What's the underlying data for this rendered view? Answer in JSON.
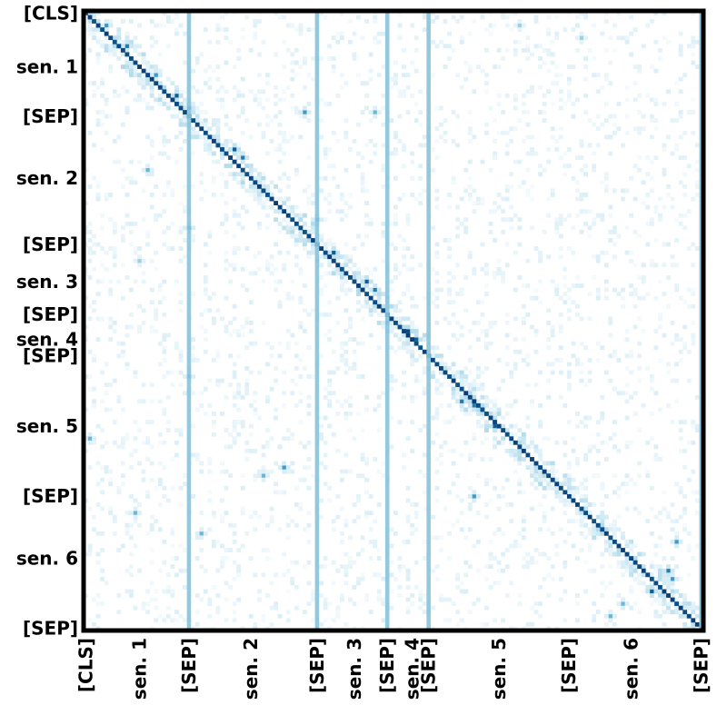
{
  "chart_data": {
    "type": "heatmap",
    "title": "",
    "xlabel": "",
    "ylabel": "",
    "tokens": 150,
    "colormap": [
      "#ffffff",
      "#d9eef6",
      "#9dd0e3",
      "#3f9bc4",
      "#0e5f93",
      "#08306b"
    ],
    "y_tick_labels": [
      {
        "label": "[CLS]",
        "token": 0
      },
      {
        "label": "sen. 1",
        "token": 13
      },
      {
        "label": "[SEP]",
        "token": 25
      },
      {
        "label": "sen. 2",
        "token": 40
      },
      {
        "label": "[SEP]",
        "token": 56
      },
      {
        "label": "sen. 3",
        "token": 65
      },
      {
        "label": "[SEP]",
        "token": 73
      },
      {
        "label": "sen. 4",
        "token": 79
      },
      {
        "label": "[SEP]",
        "token": 83
      },
      {
        "label": "sen. 5",
        "token": 100
      },
      {
        "label": "[SEP]",
        "token": 117
      },
      {
        "label": "sen. 6",
        "token": 132
      },
      {
        "label": "[SEP]",
        "token": 149
      }
    ],
    "x_tick_labels": [
      {
        "label": "[CLS]",
        "token": 0
      },
      {
        "label": "sen. 1",
        "token": 13
      },
      {
        "label": "[SEP]",
        "token": 25
      },
      {
        "label": "sen. 2",
        "token": 40
      },
      {
        "label": "[SEP]",
        "token": 56
      },
      {
        "label": "sen. 3",
        "token": 65
      },
      {
        "label": "[SEP]",
        "token": 73
      },
      {
        "label": "sen. 4",
        "token": 79
      },
      {
        "label": "[SEP]",
        "token": 83
      },
      {
        "label": "sen. 5",
        "token": 100
      },
      {
        "label": "[SEP]",
        "token": 117
      },
      {
        "label": "sen. 6",
        "token": 132
      },
      {
        "label": "[SEP]",
        "token": 149
      }
    ],
    "sep_columns": [
      25,
      56,
      73,
      83,
      149
    ],
    "sep_column_weight": 0.45,
    "diagonal_weight": 0.85,
    "hotspots": [
      {
        "row": 3,
        "col": 5,
        "weight": 0.6
      },
      {
        "row": 8,
        "col": 10,
        "weight": 0.7
      },
      {
        "row": 15,
        "col": 17,
        "weight": 0.6
      },
      {
        "row": 20,
        "col": 22,
        "weight": 0.8
      },
      {
        "row": 23,
        "col": 25,
        "weight": 0.7
      },
      {
        "row": 24,
        "col": 53,
        "weight": 0.6
      },
      {
        "row": 24,
        "col": 70,
        "weight": 0.5
      },
      {
        "row": 33,
        "col": 36,
        "weight": 0.8
      },
      {
        "row": 35,
        "col": 38,
        "weight": 0.7
      },
      {
        "row": 38,
        "col": 15,
        "weight": 0.5
      },
      {
        "row": 42,
        "col": 42,
        "weight": 0.7
      },
      {
        "row": 52,
        "col": 25,
        "weight": 0.6
      },
      {
        "row": 50,
        "col": 56,
        "weight": 0.6
      },
      {
        "row": 58,
        "col": 60,
        "weight": 0.8
      },
      {
        "row": 60,
        "col": 13,
        "weight": 0.4
      },
      {
        "row": 65,
        "col": 68,
        "weight": 0.8
      },
      {
        "row": 67,
        "col": 70,
        "weight": 0.7
      },
      {
        "row": 75,
        "col": 73,
        "weight": 0.6
      },
      {
        "row": 77,
        "col": 78,
        "weight": 0.9
      },
      {
        "row": 79,
        "col": 80,
        "weight": 0.8
      },
      {
        "row": 88,
        "col": 25,
        "weight": 0.5
      },
      {
        "row": 93,
        "col": 93,
        "weight": 0.9
      },
      {
        "row": 94,
        "col": 91,
        "weight": 0.7
      },
      {
        "row": 95,
        "col": 94,
        "weight": 0.7
      },
      {
        "row": 100,
        "col": 99,
        "weight": 0.8
      },
      {
        "row": 103,
        "col": 1,
        "weight": 0.5
      },
      {
        "row": 110,
        "col": 48,
        "weight": 0.6
      },
      {
        "row": 112,
        "col": 43,
        "weight": 0.5
      },
      {
        "row": 117,
        "col": 94,
        "weight": 0.6
      },
      {
        "row": 121,
        "col": 12,
        "weight": 0.5
      },
      {
        "row": 126,
        "col": 28,
        "weight": 0.5
      },
      {
        "row": 128,
        "col": 143,
        "weight": 0.6
      },
      {
        "row": 135,
        "col": 141,
        "weight": 0.7
      },
      {
        "row": 137,
        "col": 142,
        "weight": 0.6
      },
      {
        "row": 140,
        "col": 137,
        "weight": 0.8
      },
      {
        "row": 143,
        "col": 130,
        "weight": 0.5
      },
      {
        "row": 146,
        "col": 127,
        "weight": 0.5
      },
      {
        "row": 3,
        "col": 105,
        "weight": 0.4
      },
      {
        "row": 6,
        "col": 120,
        "weight": 0.4
      }
    ]
  }
}
